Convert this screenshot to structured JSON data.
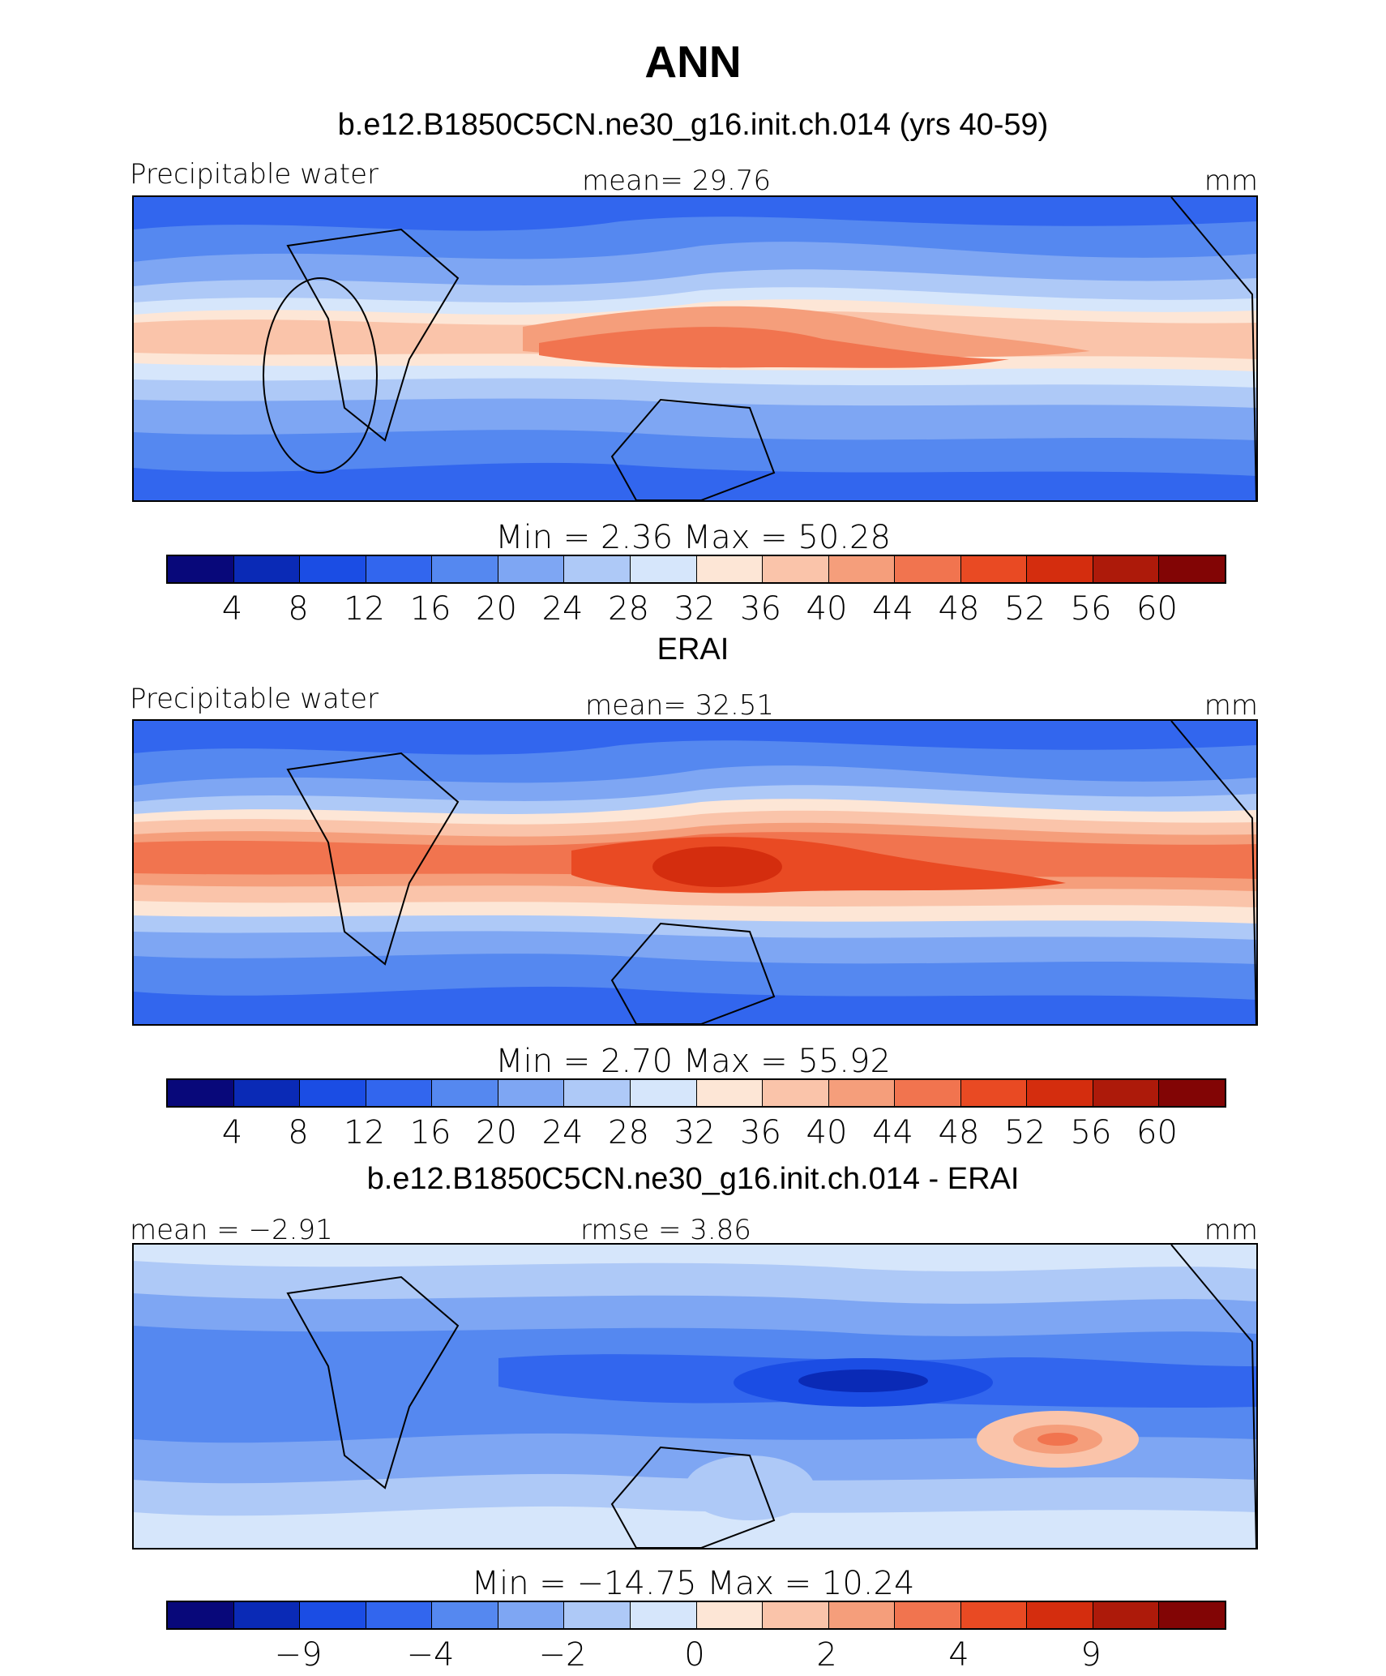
{
  "title": "ANN",
  "panels": [
    {
      "title": "b.e12.B1850C5CN.ne30_g16.init.ch.014 (yrs 40-59)",
      "left_label": "Precipitable  water",
      "center_label": "mean=   29.76",
      "units": "mm",
      "minmax": "Min  =     2.36  Max  =   50.28",
      "colorbar_ticks": [
        "4",
        "8",
        "12",
        "16",
        "20",
        "24",
        "28",
        "32",
        "36",
        "40",
        "44",
        "48",
        "52",
        "56",
        "60"
      ]
    },
    {
      "title": "ERAI",
      "left_label": "Precipitable  water",
      "center_label": "mean=   32.51",
      "units": "mm",
      "minmax": "Min  =     2.70  Max  =   55.92",
      "colorbar_ticks": [
        "4",
        "8",
        "12",
        "16",
        "20",
        "24",
        "28",
        "32",
        "36",
        "40",
        "44",
        "48",
        "52",
        "56",
        "60"
      ]
    },
    {
      "title": "b.e12.B1850C5CN.ne30_g16.init.ch.014 - ERAI",
      "left_label": "mean  =   −2.91",
      "center_label": "rmse  =     3.86",
      "units": "mm",
      "minmax": "Min  =  −14.75  Max  =   10.24",
      "colorbar_ticks": [
        "−9",
        "−4",
        "−2",
        "0",
        "2",
        "4",
        "9"
      ]
    }
  ],
  "colors": {
    "colorbar": [
      "#08087a",
      "#0a2ab6",
      "#1b4de4",
      "#3266ee",
      "#5588f0",
      "#7ea6f3",
      "#aec9f7",
      "#d6e6fb",
      "#fde6d6",
      "#fac4aa",
      "#f59e7b",
      "#f1744f",
      "#e94a23",
      "#d42d0e",
      "#ad1a0a",
      "#820505"
    ]
  }
}
